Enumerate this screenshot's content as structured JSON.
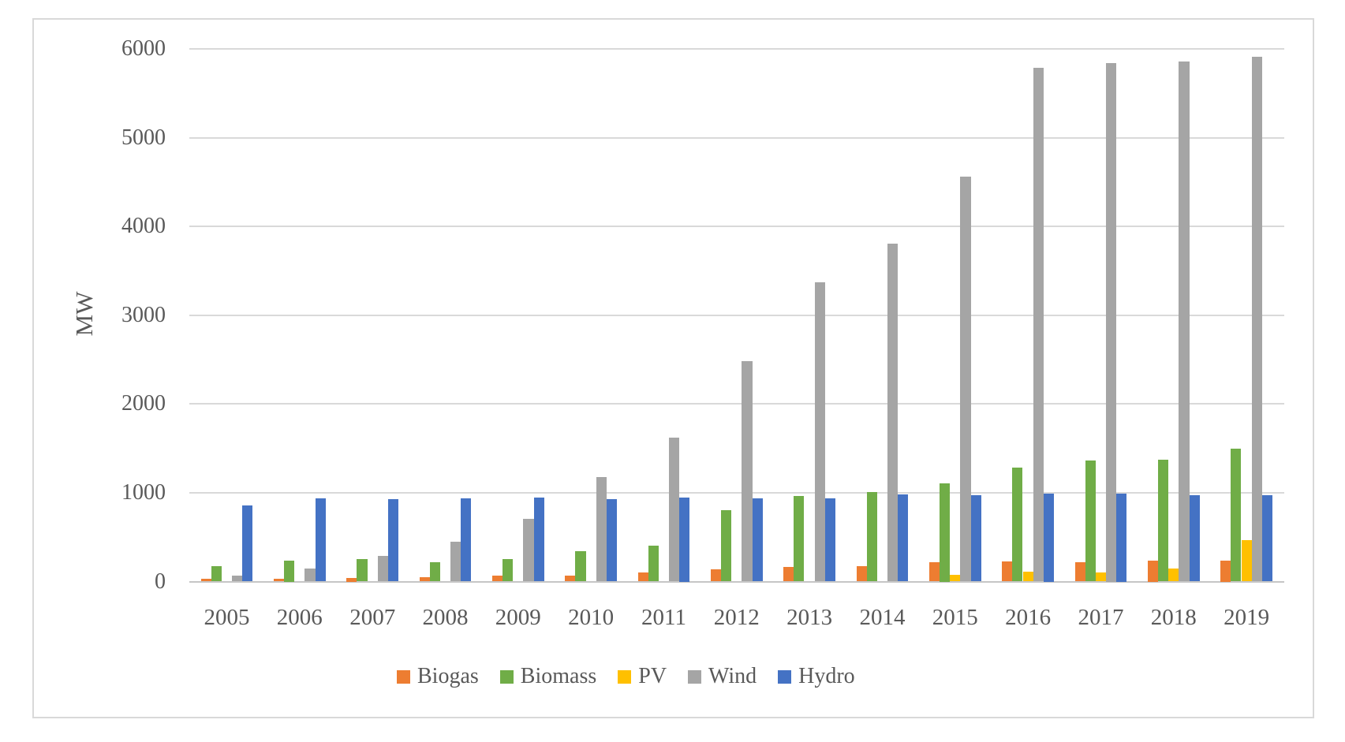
{
  "figure": {
    "background": "#FFFFFF",
    "border_color": "#D9D9D9"
  },
  "chart_data": {
    "type": "bar",
    "title": "",
    "xlabel": "",
    "ylabel": "MW",
    "ylim": [
      0,
      6000
    ],
    "ytick_interval": 1000,
    "yticks": [
      0,
      1000,
      2000,
      3000,
      4000,
      5000,
      6000
    ],
    "grid": "horizontal gridlines on",
    "gridline_color": "#D9D9D9",
    "axis_line_color": "#C6C6C6",
    "text_color": "#595959",
    "legend_position": "bottom",
    "categories": [
      "2005",
      "2006",
      "2007",
      "2008",
      "2009",
      "2010",
      "2011",
      "2012",
      "2013",
      "2014",
      "2015",
      "2016",
      "2017",
      "2018",
      "2019"
    ],
    "series": [
      {
        "name": "Biogas",
        "color": "#ED7D31",
        "values": [
          30,
          35,
          40,
          50,
          65,
          70,
          100,
          135,
          165,
          175,
          220,
          230,
          220,
          235,
          235
        ]
      },
      {
        "name": "Biomass",
        "color": "#70AD47",
        "values": [
          175,
          235,
          250,
          220,
          250,
          340,
          405,
          805,
          965,
          1010,
          1110,
          1280,
          1360,
          1370,
          1500
        ]
      },
      {
        "name": "PV",
        "color": "#FFC000",
        "values": [
          0,
          0,
          0,
          0,
          0,
          0,
          0,
          0,
          0,
          0,
          75,
          110,
          100,
          145,
          470
        ]
      },
      {
        "name": "Wind",
        "color": "#A5A5A5",
        "values": [
          70,
          145,
          285,
          450,
          710,
          1175,
          1620,
          2480,
          3370,
          3810,
          4560,
          5790,
          5840,
          5855,
          5910
        ]
      },
      {
        "name": "Hydro",
        "color": "#4472C4",
        "values": [
          855,
          935,
          930,
          935,
          945,
          930,
          950,
          940,
          940,
          980,
          975,
          990,
          990,
          975,
          975
        ]
      }
    ]
  }
}
